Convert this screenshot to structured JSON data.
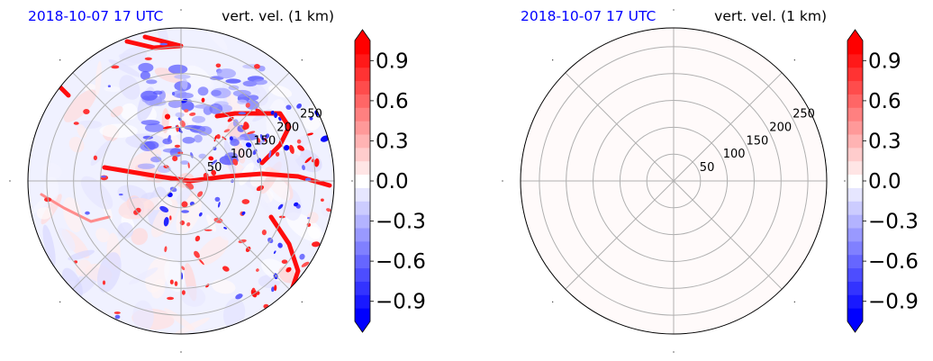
{
  "chart_data": [
    {
      "type": "heatmap",
      "projection": "polar",
      "title_left": "2018-10-07 17 UTC",
      "title_right": "vert. vel. (1 km)",
      "title_left_color": "#0000ff",
      "radial_ticks": [
        "50",
        "100",
        "150",
        "200",
        "250"
      ],
      "r_max": 285,
      "grid": true,
      "field": "structured",
      "colorbar": {
        "min": -1.05,
        "max": 1.05,
        "ticks": [
          "0.9",
          "0.6",
          "0.3",
          "0.0",
          "−0.3",
          "−0.6",
          "−0.9"
        ],
        "tick_values": [
          0.9,
          0.6,
          0.3,
          0.0,
          -0.3,
          -0.6,
          -0.9
        ],
        "colormap": "bwr",
        "extend": "both"
      }
    },
    {
      "type": "heatmap",
      "projection": "polar",
      "title_left": "2018-10-07 17 UTC",
      "title_right": "vert. vel. (1 km)",
      "title_left_color": "#0000ff",
      "radial_ticks": [
        "50",
        "100",
        "150",
        "200",
        "250"
      ],
      "r_max": 285,
      "grid": true,
      "field": "uniform",
      "uniform_value": 0.02,
      "colorbar": {
        "min": -1.05,
        "max": 1.05,
        "ticks": [
          "0.9",
          "0.6",
          "0.3",
          "0.0",
          "−0.3",
          "−0.6",
          "−0.9"
        ],
        "tick_values": [
          0.9,
          0.6,
          0.3,
          0.0,
          -0.3,
          -0.6,
          -0.9
        ],
        "colormap": "bwr",
        "extend": "both"
      }
    }
  ]
}
